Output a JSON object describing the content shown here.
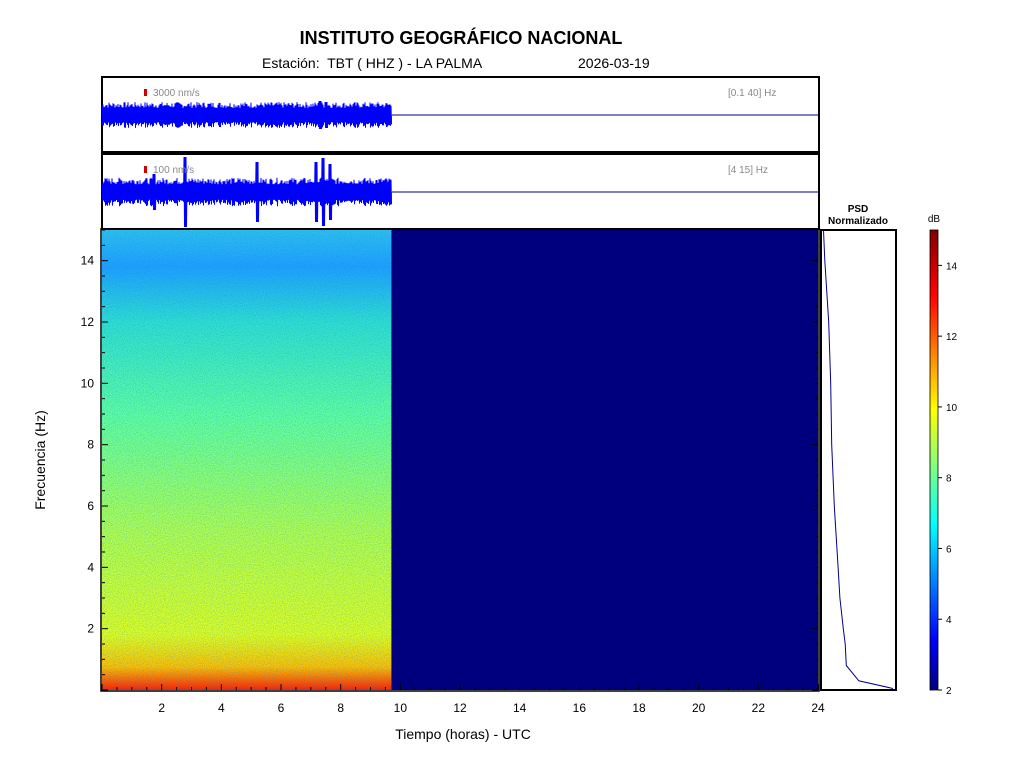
{
  "header": {
    "title": "INSTITUTO GEOGRÁFICO NACIONAL",
    "station_label": "Estación:  TBT ( HHZ ) - LA PALMA",
    "date": "2026-03-19"
  },
  "traces": [
    {
      "scale_label": "3000 nm/s",
      "band_label": "[0.1 40] Hz"
    },
    {
      "scale_label": "100 nm/s",
      "band_label": "[4 15] Hz"
    }
  ],
  "psd_panel": {
    "title_line1": "PSD",
    "title_line2": "Normalizado"
  },
  "colorbar": {
    "unit": "dB",
    "range": [
      2,
      15
    ],
    "ticks": [
      2,
      4,
      6,
      8,
      10,
      12,
      14
    ],
    "colormap": "jet"
  },
  "chart_data": {
    "type": "heatmap",
    "title": "INSTITUTO GEOGRÁFICO NACIONAL",
    "xlabel": "Tiempo (horas) - UTC",
    "ylabel": "Frecuencia  (Hz)",
    "xlim": [
      0,
      24
    ],
    "ylim": [
      0,
      15
    ],
    "xticks": [
      2,
      4,
      6,
      8,
      10,
      12,
      14,
      16,
      18,
      20,
      22,
      24
    ],
    "yticks": [
      2,
      4,
      6,
      8,
      10,
      12,
      14
    ],
    "data_end_hour": 9.7,
    "spectrogram_db_profile": {
      "frequency_hz": [
        0.1,
        0.3,
        0.5,
        1,
        2,
        4,
        6,
        8,
        10,
        12,
        13.5,
        15
      ],
      "db": [
        13.5,
        12.5,
        11.5,
        10.0,
        9.5,
        9.0,
        8.2,
        7.5,
        7.0,
        6.5,
        5.5,
        6.0
      ]
    },
    "psd_normalized": {
      "frequency_hz": [
        0.05,
        0.3,
        0.8,
        1.5,
        2,
        3,
        4,
        6,
        8,
        10,
        12,
        14,
        15
      ],
      "value": [
        1.0,
        0.5,
        0.35,
        0.32,
        0.3,
        0.25,
        0.22,
        0.18,
        0.14,
        0.12,
        0.08,
        0.03,
        0.03
      ]
    },
    "no_data_color": "#00007f"
  },
  "colors": {
    "frame": "#000000",
    "trace": "#0000ff",
    "flatline": "#00008b",
    "scale_marker": "#cc0000"
  }
}
